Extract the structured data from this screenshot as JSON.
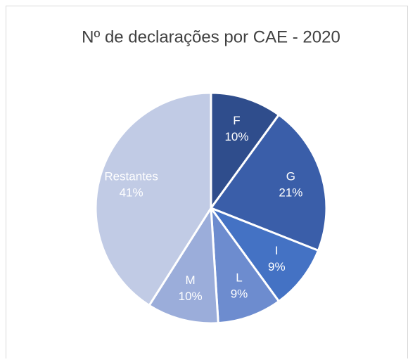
{
  "chart_data": {
    "type": "pie",
    "title": "Nº de declarações por CAE - 2020",
    "categories": [
      "F",
      "G",
      "I",
      "L",
      "M",
      "Restantes"
    ],
    "values": [
      10,
      21,
      9,
      9,
      10,
      41
    ],
    "value_labels": [
      "10%",
      "21%",
      "9%",
      "9%",
      "10%",
      "41%"
    ],
    "colors": [
      "#2f4d8c",
      "#3a5ea9",
      "#4472c4",
      "#6d8ccf",
      "#9badda",
      "#c1cbe5"
    ]
  }
}
